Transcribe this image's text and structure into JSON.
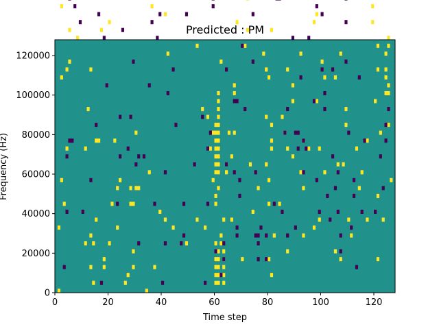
{
  "chart_data": {
    "type": "heatmap",
    "title": "Predicted : PM",
    "xlabel": "Time step",
    "ylabel": "Frequency (Hz)",
    "xlim": [
      0,
      128
    ],
    "ylim": [
      0,
      128000
    ],
    "row_height": 2000,
    "xticks": [
      0,
      20,
      40,
      60,
      80,
      100,
      120
    ],
    "yticks": [
      0,
      20000,
      40000,
      60000,
      80000,
      100000,
      120000
    ],
    "ytick_labels": [
      "0",
      "20000",
      "40000",
      "60000",
      "80000",
      "100000",
      "120000"
    ],
    "colors": {
      "background": "#21918c",
      "high": "#fde725",
      "low": "#440154"
    },
    "high_cells": [
      [
        1,
        0
      ],
      [
        1,
        16
      ],
      [
        2,
        28
      ],
      [
        2,
        54
      ],
      [
        2,
        72
      ],
      [
        2,
        88
      ],
      [
        2,
        104
      ],
      [
        2,
        114
      ],
      [
        3,
        22
      ],
      [
        4,
        36
      ],
      [
        4,
        56
      ],
      [
        5,
        66
      ],
      [
        5,
        58
      ],
      [
        5,
        74
      ],
      [
        5,
        90
      ],
      [
        5,
        100
      ],
      [
        5,
        116
      ],
      [
        6,
        84
      ],
      [
        6,
        86
      ],
      [
        6,
        88
      ],
      [
        8,
        86
      ],
      [
        8,
        64
      ],
      [
        9,
        112
      ],
      [
        11,
        12
      ],
      [
        11,
        36
      ],
      [
        12,
        46
      ],
      [
        13,
        6
      ],
      [
        13,
        14
      ],
      [
        13,
        56
      ],
      [
        14,
        2
      ],
      [
        14,
        12
      ],
      [
        15,
        18
      ],
      [
        15,
        38
      ],
      [
        16,
        38
      ],
      [
        16,
        94
      ],
      [
        17,
        66
      ],
      [
        17,
        90
      ],
      [
        18,
        8
      ],
      [
        18,
        6
      ],
      [
        20,
        12
      ],
      [
        20,
        68
      ],
      [
        21,
        22
      ],
      [
        22,
        38
      ],
      [
        23,
        16
      ],
      [
        23,
        26
      ],
      [
        24,
        28
      ],
      [
        25,
        114
      ],
      [
        26,
        2
      ],
      [
        27,
        4
      ],
      [
        27,
        94
      ],
      [
        28,
        88
      ],
      [
        28,
        22
      ],
      [
        28,
        26
      ],
      [
        29,
        10
      ],
      [
        29,
        6
      ],
      [
        29,
        22
      ],
      [
        30,
        40
      ],
      [
        30,
        26
      ],
      [
        31,
        26
      ],
      [
        32,
        106
      ],
      [
        34,
        0
      ],
      [
        35,
        30
      ],
      [
        36,
        72
      ],
      [
        37,
        6
      ],
      [
        39,
        20
      ],
      [
        40,
        80
      ],
      [
        40,
        118
      ],
      [
        41,
        18
      ],
      [
        41,
        70
      ],
      [
        42,
        60
      ],
      [
        43,
        104
      ],
      [
        44,
        16
      ],
      [
        46,
        96
      ],
      [
        47,
        120
      ],
      [
        49,
        12
      ],
      [
        50,
        112
      ],
      [
        51,
        78
      ],
      [
        53,
        18
      ],
      [
        53,
        62
      ],
      [
        55,
        110
      ],
      [
        55,
        46
      ],
      [
        56,
        16
      ],
      [
        57,
        44
      ],
      [
        58,
        36
      ],
      [
        58,
        126
      ],
      [
        59,
        40
      ],
      [
        59,
        28
      ],
      [
        60,
        2
      ],
      [
        60,
        4
      ],
      [
        60,
        6
      ],
      [
        60,
        8
      ],
      [
        60,
        10
      ],
      [
        60,
        12
      ],
      [
        60,
        22
      ],
      [
        60,
        24
      ],
      [
        60,
        30
      ],
      [
        60,
        32
      ],
      [
        60,
        34
      ],
      [
        60,
        36
      ],
      [
        60,
        38
      ],
      [
        60,
        40
      ],
      [
        60,
        42
      ],
      [
        61,
        2
      ],
      [
        61,
        4
      ],
      [
        61,
        6
      ],
      [
        61,
        8
      ],
      [
        61,
        10
      ],
      [
        61,
        26
      ],
      [
        61,
        30
      ],
      [
        61,
        32
      ],
      [
        61,
        34
      ],
      [
        61,
        36
      ],
      [
        61,
        38
      ],
      [
        61,
        40
      ],
      [
        61,
        42
      ],
      [
        61,
        44
      ],
      [
        61,
        46
      ],
      [
        61,
        48
      ],
      [
        61,
        50
      ],
      [
        62,
        12
      ],
      [
        62,
        14
      ],
      [
        62,
        58
      ],
      [
        63,
        2
      ],
      [
        63,
        4
      ],
      [
        63,
        6
      ],
      [
        63,
        8
      ],
      [
        63,
        10
      ],
      [
        63,
        18
      ],
      [
        64,
        30
      ],
      [
        64,
        32
      ],
      [
        65,
        40
      ],
      [
        66,
        18
      ],
      [
        66,
        34
      ],
      [
        67,
        50
      ],
      [
        67,
        40
      ],
      [
        67,
        52
      ],
      [
        68,
        68
      ],
      [
        69,
        100
      ],
      [
        69,
        104
      ],
      [
        69,
        106
      ],
      [
        70,
        112
      ],
      [
        70,
        8
      ],
      [
        71,
        62
      ],
      [
        71,
        94
      ],
      [
        72,
        74
      ],
      [
        72,
        66
      ],
      [
        73,
        32
      ],
      [
        74,
        124
      ],
      [
        74,
        118
      ],
      [
        74,
        20
      ],
      [
        76,
        92
      ],
      [
        76,
        26
      ],
      [
        77,
        108
      ],
      [
        77,
        84
      ],
      [
        78,
        60
      ],
      [
        78,
        82
      ],
      [
        79,
        56
      ],
      [
        79,
        44
      ],
      [
        79,
        32
      ],
      [
        80,
        8
      ],
      [
        80,
        22
      ],
      [
        80,
        28
      ],
      [
        80,
        54
      ],
      [
        81,
        38
      ],
      [
        81,
        36
      ],
      [
        81,
        42
      ],
      [
        81,
        66
      ],
      [
        81,
        4
      ],
      [
        82,
        14
      ],
      [
        84,
        22
      ],
      [
        85,
        82
      ],
      [
        85,
        44
      ],
      [
        86,
        40
      ],
      [
        87,
        36
      ],
      [
        87,
        10
      ],
      [
        87,
        56
      ],
      [
        89,
        34
      ],
      [
        89,
        48
      ],
      [
        89,
        52
      ],
      [
        92,
        30
      ],
      [
        92,
        60
      ],
      [
        93,
        14
      ],
      [
        93,
        38
      ],
      [
        93,
        26
      ],
      [
        95,
        36
      ],
      [
        97,
        16
      ],
      [
        97,
        68
      ],
      [
        98,
        70
      ],
      [
        98,
        48
      ],
      [
        98,
        104
      ],
      [
        99,
        36
      ],
      [
        99,
        18
      ],
      [
        100,
        58
      ],
      [
        100,
        84
      ],
      [
        101,
        54
      ],
      [
        101,
        30
      ],
      [
        102,
        118
      ],
      [
        105,
        10
      ],
      [
        105,
        54
      ],
      [
        106,
        32
      ],
      [
        107,
        8
      ],
      [
        107,
        60
      ],
      [
        107,
        108
      ],
      [
        108,
        32
      ],
      [
        109,
        46
      ],
      [
        109,
        42
      ],
      [
        110,
        18
      ],
      [
        111,
        14
      ],
      [
        113,
        36
      ],
      [
        114,
        26
      ],
      [
        115,
        30
      ],
      [
        117,
        38
      ],
      [
        117,
        18
      ],
      [
        118,
        88
      ],
      [
        118,
        96
      ],
      [
        118,
        124
      ],
      [
        119,
        68
      ],
      [
        119,
        72
      ],
      [
        120,
        48
      ],
      [
        121,
        8
      ],
      [
        121,
        24
      ],
      [
        121,
        62
      ],
      [
        121,
        56
      ],
      [
        121,
        104
      ],
      [
        122,
        40
      ],
      [
        123,
        18
      ],
      [
        123,
        110
      ],
      [
        124,
        124
      ],
      [
        124,
        60
      ],
      [
        124,
        56
      ],
      [
        124,
        54
      ],
      [
        124,
        50
      ],
      [
        125,
        42
      ],
      [
        125,
        50
      ],
      [
        125,
        52
      ],
      [
        125,
        62
      ],
      [
        125,
        64
      ],
      [
        125,
        98
      ],
      [
        125,
        122
      ],
      [
        125,
        96
      ],
      [
        125,
        102
      ],
      [
        126,
        28
      ],
      [
        126,
        92
      ]
    ],
    "low_cells": [
      [
        2,
        124
      ],
      [
        3,
        6
      ],
      [
        3,
        102
      ],
      [
        3,
        100
      ],
      [
        4,
        34
      ],
      [
        4,
        20
      ],
      [
        5,
        38
      ],
      [
        5,
        74
      ],
      [
        6,
        38
      ],
      [
        7,
        72
      ],
      [
        9,
        102
      ],
      [
        9,
        68
      ],
      [
        10,
        20
      ],
      [
        11,
        112
      ],
      [
        12,
        80
      ],
      [
        13,
        28
      ],
      [
        14,
        104
      ],
      [
        14,
        124
      ],
      [
        15,
        106
      ],
      [
        15,
        42
      ],
      [
        16,
        70
      ],
      [
        17,
        2
      ],
      [
        18,
        78
      ],
      [
        18,
        64
      ],
      [
        19,
        52
      ],
      [
        20,
        84
      ],
      [
        21,
        76
      ],
      [
        22,
        106
      ],
      [
        23,
        22
      ],
      [
        24,
        104
      ],
      [
        24,
        34
      ],
      [
        24,
        44
      ],
      [
        25,
        82
      ],
      [
        25,
        66
      ],
      [
        25,
        110
      ],
      [
        26,
        124
      ],
      [
        27,
        36
      ],
      [
        28,
        44
      ],
      [
        29,
        58
      ],
      [
        30,
        32
      ],
      [
        31,
        12
      ],
      [
        31,
        34
      ],
      [
        33,
        34
      ],
      [
        34,
        96
      ],
      [
        35,
        110
      ],
      [
        35,
        52
      ],
      [
        36,
        68
      ],
      [
        37,
        22
      ],
      [
        38,
        64
      ],
      [
        38,
        96
      ],
      [
        39,
        70
      ],
      [
        40,
        2
      ],
      [
        41,
        12
      ],
      [
        41,
        30
      ],
      [
        42,
        50
      ],
      [
        44,
        56
      ],
      [
        45,
        42
      ],
      [
        46,
        104
      ],
      [
        46,
        88
      ],
      [
        47,
        12
      ],
      [
        48,
        14
      ],
      [
        48,
        22
      ],
      [
        49,
        70
      ],
      [
        50,
        110
      ],
      [
        51,
        104
      ],
      [
        52,
        32
      ],
      [
        55,
        44
      ],
      [
        56,
        2
      ],
      [
        57,
        36
      ],
      [
        57,
        22
      ],
      [
        57,
        120
      ],
      [
        58,
        40
      ],
      [
        59,
        92
      ],
      [
        59,
        78
      ],
      [
        59,
        72
      ],
      [
        59,
        74
      ],
      [
        60,
        10
      ],
      [
        60,
        86
      ],
      [
        62,
        4
      ],
      [
        63,
        8
      ],
      [
        63,
        12
      ],
      [
        64,
        56
      ],
      [
        64,
        32
      ],
      [
        66,
        88
      ],
      [
        66,
        94
      ],
      [
        66,
        102
      ],
      [
        66,
        108
      ],
      [
        67,
        48
      ],
      [
        67,
        30
      ],
      [
        68,
        48
      ],
      [
        68,
        14
      ],
      [
        68,
        16
      ],
      [
        69,
        28
      ],
      [
        69,
        24
      ],
      [
        70,
        62
      ],
      [
        71,
        46
      ],
      [
        72,
        92
      ],
      [
        72,
        90
      ],
      [
        73,
        80
      ],
      [
        74,
        70
      ],
      [
        74,
        58
      ],
      [
        75,
        14
      ],
      [
        75,
        30
      ],
      [
        76,
        8
      ],
      [
        76,
        12
      ],
      [
        76,
        14
      ],
      [
        77,
        16
      ],
      [
        77,
        94
      ],
      [
        78,
        124
      ],
      [
        79,
        14
      ],
      [
        79,
        8
      ],
      [
        82,
        96
      ],
      [
        82,
        22
      ],
      [
        83,
        74
      ],
      [
        84,
        74
      ],
      [
        85,
        20
      ],
      [
        86,
        40
      ],
      [
        87,
        46
      ],
      [
        87,
        14
      ],
      [
        89,
        64
      ],
      [
        90,
        16
      ],
      [
        90,
        40
      ],
      [
        91,
        40
      ],
      [
        91,
        36
      ],
      [
        92,
        54
      ],
      [
        93,
        38
      ],
      [
        93,
        30
      ],
      [
        94,
        36
      ],
      [
        95,
        64
      ],
      [
        96,
        78
      ],
      [
        97,
        48
      ],
      [
        98,
        72
      ],
      [
        98,
        28
      ],
      [
        99,
        20
      ],
      [
        100,
        70
      ],
      [
        100,
        56
      ],
      [
        101,
        88
      ],
      [
        101,
        50
      ],
      [
        101,
        46
      ],
      [
        102,
        24
      ],
      [
        103,
        18
      ],
      [
        103,
        114
      ],
      [
        104,
        56
      ],
      [
        104,
        34
      ],
      [
        105,
        26
      ],
      [
        106,
        20
      ],
      [
        106,
        30
      ],
      [
        107,
        14
      ],
      [
        107,
        10
      ],
      [
        107,
        122
      ],
      [
        108,
        112
      ],
      [
        109,
        74
      ],
      [
        109,
        68
      ],
      [
        109,
        58
      ],
      [
        110,
        80
      ],
      [
        110,
        40
      ],
      [
        111,
        16
      ],
      [
        112,
        24
      ],
      [
        112,
        28
      ],
      [
        113,
        6
      ],
      [
        114,
        54
      ],
      [
        115,
        20
      ],
      [
        116,
        38
      ],
      [
        118,
        86
      ],
      [
        119,
        104
      ],
      [
        120,
        20
      ],
      [
        121,
        84
      ],
      [
        121,
        78
      ],
      [
        122,
        34
      ],
      [
        123,
        26
      ],
      [
        124,
        38
      ],
      [
        124,
        42
      ],
      [
        125,
        46
      ],
      [
        126,
        124
      ],
      [
        127,
        110
      ]
    ]
  }
}
